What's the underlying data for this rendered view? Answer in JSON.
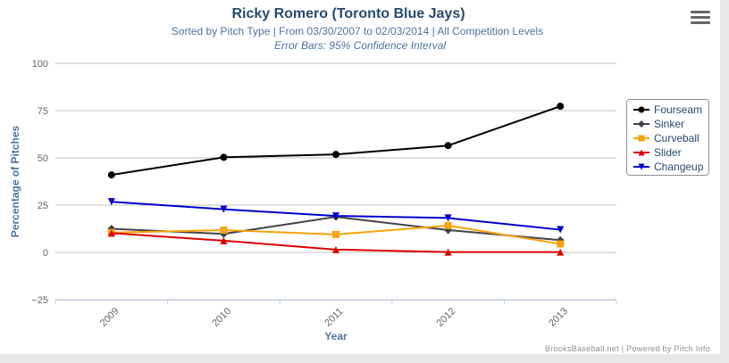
{
  "header": {
    "title": "Ricky Romero (Toronto Blue Jays)",
    "subtitle": "Sorted by Pitch Type | From 03/30/2007 to 02/03/2014 | All Competition Levels",
    "subtitle2": "Error Bars: 95% Confidence Interval",
    "menu_icon": "hamburger-menu-icon"
  },
  "credits": "BrooksBaseball.net | Powered by Pitch Info",
  "chart_data": {
    "type": "line",
    "title": "Ricky Romero (Toronto Blue Jays)",
    "xlabel": "Year",
    "ylabel": "Percentage of Pitches",
    "categories": [
      "2009",
      "2010",
      "2011",
      "2012",
      "2013"
    ],
    "yticks": [
      "100",
      "75",
      "50",
      "25",
      "0",
      "−25"
    ],
    "ytick_values": [
      100,
      75,
      50,
      25,
      0,
      -25
    ],
    "ylim": [
      -25,
      100
    ],
    "grid": true,
    "legend_position": "right",
    "series": [
      {
        "name": "Fourseam",
        "color": "#000000",
        "marker": "circle",
        "values": [
          41,
          50.3,
          51.8,
          56.5,
          77.3
        ]
      },
      {
        "name": "Sinker",
        "color": "#434348",
        "marker": "diamond",
        "values": [
          12.5,
          9.8,
          18.8,
          11.8,
          6.5
        ]
      },
      {
        "name": "Curveball",
        "color": "#f7a30a",
        "marker": "square",
        "values": [
          10.5,
          11.8,
          9.5,
          14.2,
          4.5
        ]
      },
      {
        "name": "Slider",
        "color": "#dd0000",
        "marker": "triangle",
        "values": [
          10.2,
          6.2,
          1.5,
          0.2,
          0.2
        ]
      },
      {
        "name": "Changeup",
        "color": "#0000cc",
        "marker": "triangle-down",
        "values": [
          26.8,
          22.8,
          19.3,
          18.2,
          12
        ]
      }
    ]
  }
}
